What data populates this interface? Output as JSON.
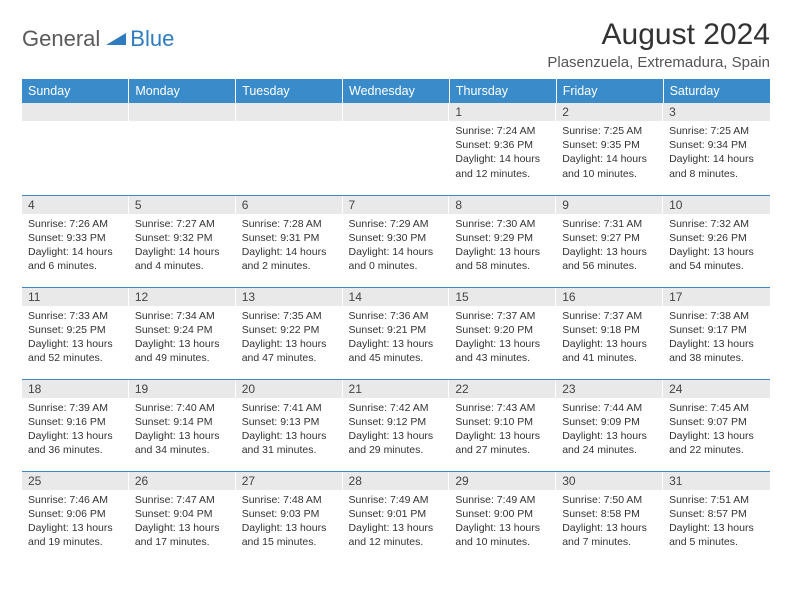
{
  "logo": {
    "general": "General",
    "blue": "Blue"
  },
  "title": "August 2024",
  "location": "Plasenzuela, Extremadura, Spain",
  "weekday_labels": [
    "Sunday",
    "Monday",
    "Tuesday",
    "Wednesday",
    "Thursday",
    "Friday",
    "Saturday"
  ],
  "colors": {
    "header_bg": "#3a8bc9",
    "header_text": "#ffffff",
    "daynum_bg": "#e9e9e9",
    "cell_border": "#3a8bc9",
    "logo_gray": "#5a5a5a",
    "logo_blue": "#2f7bbf",
    "body_text": "#333333"
  },
  "weeks": [
    [
      {
        "n": "",
        "sr": "",
        "ss": "",
        "dl": ""
      },
      {
        "n": "",
        "sr": "",
        "ss": "",
        "dl": ""
      },
      {
        "n": "",
        "sr": "",
        "ss": "",
        "dl": ""
      },
      {
        "n": "",
        "sr": "",
        "ss": "",
        "dl": ""
      },
      {
        "n": "1",
        "sr": "Sunrise: 7:24 AM",
        "ss": "Sunset: 9:36 PM",
        "dl": "Daylight: 14 hours and 12 minutes."
      },
      {
        "n": "2",
        "sr": "Sunrise: 7:25 AM",
        "ss": "Sunset: 9:35 PM",
        "dl": "Daylight: 14 hours and 10 minutes."
      },
      {
        "n": "3",
        "sr": "Sunrise: 7:25 AM",
        "ss": "Sunset: 9:34 PM",
        "dl": "Daylight: 14 hours and 8 minutes."
      }
    ],
    [
      {
        "n": "4",
        "sr": "Sunrise: 7:26 AM",
        "ss": "Sunset: 9:33 PM",
        "dl": "Daylight: 14 hours and 6 minutes."
      },
      {
        "n": "5",
        "sr": "Sunrise: 7:27 AM",
        "ss": "Sunset: 9:32 PM",
        "dl": "Daylight: 14 hours and 4 minutes."
      },
      {
        "n": "6",
        "sr": "Sunrise: 7:28 AM",
        "ss": "Sunset: 9:31 PM",
        "dl": "Daylight: 14 hours and 2 minutes."
      },
      {
        "n": "7",
        "sr": "Sunrise: 7:29 AM",
        "ss": "Sunset: 9:30 PM",
        "dl": "Daylight: 14 hours and 0 minutes."
      },
      {
        "n": "8",
        "sr": "Sunrise: 7:30 AM",
        "ss": "Sunset: 9:29 PM",
        "dl": "Daylight: 13 hours and 58 minutes."
      },
      {
        "n": "9",
        "sr": "Sunrise: 7:31 AM",
        "ss": "Sunset: 9:27 PM",
        "dl": "Daylight: 13 hours and 56 minutes."
      },
      {
        "n": "10",
        "sr": "Sunrise: 7:32 AM",
        "ss": "Sunset: 9:26 PM",
        "dl": "Daylight: 13 hours and 54 minutes."
      }
    ],
    [
      {
        "n": "11",
        "sr": "Sunrise: 7:33 AM",
        "ss": "Sunset: 9:25 PM",
        "dl": "Daylight: 13 hours and 52 minutes."
      },
      {
        "n": "12",
        "sr": "Sunrise: 7:34 AM",
        "ss": "Sunset: 9:24 PM",
        "dl": "Daylight: 13 hours and 49 minutes."
      },
      {
        "n": "13",
        "sr": "Sunrise: 7:35 AM",
        "ss": "Sunset: 9:22 PM",
        "dl": "Daylight: 13 hours and 47 minutes."
      },
      {
        "n": "14",
        "sr": "Sunrise: 7:36 AM",
        "ss": "Sunset: 9:21 PM",
        "dl": "Daylight: 13 hours and 45 minutes."
      },
      {
        "n": "15",
        "sr": "Sunrise: 7:37 AM",
        "ss": "Sunset: 9:20 PM",
        "dl": "Daylight: 13 hours and 43 minutes."
      },
      {
        "n": "16",
        "sr": "Sunrise: 7:37 AM",
        "ss": "Sunset: 9:18 PM",
        "dl": "Daylight: 13 hours and 41 minutes."
      },
      {
        "n": "17",
        "sr": "Sunrise: 7:38 AM",
        "ss": "Sunset: 9:17 PM",
        "dl": "Daylight: 13 hours and 38 minutes."
      }
    ],
    [
      {
        "n": "18",
        "sr": "Sunrise: 7:39 AM",
        "ss": "Sunset: 9:16 PM",
        "dl": "Daylight: 13 hours and 36 minutes."
      },
      {
        "n": "19",
        "sr": "Sunrise: 7:40 AM",
        "ss": "Sunset: 9:14 PM",
        "dl": "Daylight: 13 hours and 34 minutes."
      },
      {
        "n": "20",
        "sr": "Sunrise: 7:41 AM",
        "ss": "Sunset: 9:13 PM",
        "dl": "Daylight: 13 hours and 31 minutes."
      },
      {
        "n": "21",
        "sr": "Sunrise: 7:42 AM",
        "ss": "Sunset: 9:12 PM",
        "dl": "Daylight: 13 hours and 29 minutes."
      },
      {
        "n": "22",
        "sr": "Sunrise: 7:43 AM",
        "ss": "Sunset: 9:10 PM",
        "dl": "Daylight: 13 hours and 27 minutes."
      },
      {
        "n": "23",
        "sr": "Sunrise: 7:44 AM",
        "ss": "Sunset: 9:09 PM",
        "dl": "Daylight: 13 hours and 24 minutes."
      },
      {
        "n": "24",
        "sr": "Sunrise: 7:45 AM",
        "ss": "Sunset: 9:07 PM",
        "dl": "Daylight: 13 hours and 22 minutes."
      }
    ],
    [
      {
        "n": "25",
        "sr": "Sunrise: 7:46 AM",
        "ss": "Sunset: 9:06 PM",
        "dl": "Daylight: 13 hours and 19 minutes."
      },
      {
        "n": "26",
        "sr": "Sunrise: 7:47 AM",
        "ss": "Sunset: 9:04 PM",
        "dl": "Daylight: 13 hours and 17 minutes."
      },
      {
        "n": "27",
        "sr": "Sunrise: 7:48 AM",
        "ss": "Sunset: 9:03 PM",
        "dl": "Daylight: 13 hours and 15 minutes."
      },
      {
        "n": "28",
        "sr": "Sunrise: 7:49 AM",
        "ss": "Sunset: 9:01 PM",
        "dl": "Daylight: 13 hours and 12 minutes."
      },
      {
        "n": "29",
        "sr": "Sunrise: 7:49 AM",
        "ss": "Sunset: 9:00 PM",
        "dl": "Daylight: 13 hours and 10 minutes."
      },
      {
        "n": "30",
        "sr": "Sunrise: 7:50 AM",
        "ss": "Sunset: 8:58 PM",
        "dl": "Daylight: 13 hours and 7 minutes."
      },
      {
        "n": "31",
        "sr": "Sunrise: 7:51 AM",
        "ss": "Sunset: 8:57 PM",
        "dl": "Daylight: 13 hours and 5 minutes."
      }
    ]
  ]
}
